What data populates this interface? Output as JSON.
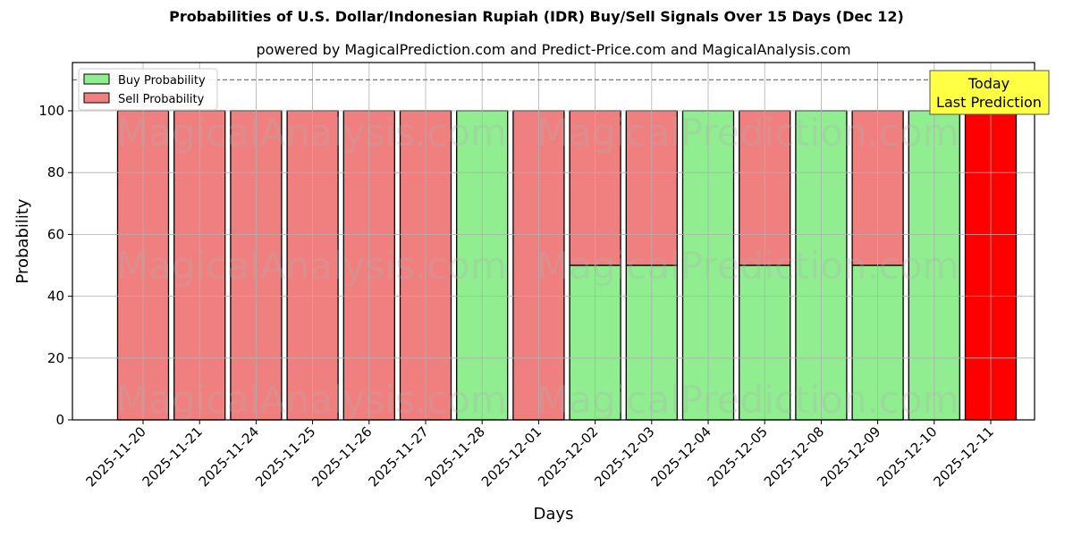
{
  "title": "Probabilities of U.S. Dollar/Indonesian Rupiah (IDR) Buy/Sell Signals Over 15 Days (Dec 12)",
  "subtitle": "powered by MagicalPrediction.com and Predict-Price.com and MagicalAnalysis.com",
  "annotation": {
    "line1": "Today",
    "line2": "Last Prediction"
  },
  "watermarks": [
    "MagicalAnalysis.com",
    "MagicalPrediction.com"
  ],
  "colors": {
    "buy": "#90ee90",
    "sell": "#f08080",
    "today": "#ff0000",
    "annotation_bg": "#ffff44"
  },
  "chart_data": {
    "type": "bar",
    "stacked": true,
    "title": "Probabilities of U.S. Dollar/Indonesian Rupiah (IDR) Buy/Sell Signals Over 15 Days (Dec 12)",
    "subtitle": "powered by MagicalPrediction.com and Predict-Price.com and MagicalAnalysis.com",
    "xlabel": "Days",
    "ylabel": "Probability",
    "ylim": [
      0,
      115
    ],
    "yticks": [
      0,
      20,
      40,
      60,
      80,
      100
    ],
    "reference_line": {
      "y": 110,
      "style": "dashed"
    },
    "grid": true,
    "legend_position": "upper left",
    "categories": [
      "2025-11-20",
      "2025-11-21",
      "2025-11-24",
      "2025-11-25",
      "2025-11-26",
      "2025-11-27",
      "2025-11-28",
      "2025-12-01",
      "2025-12-02",
      "2025-12-03",
      "2025-12-04",
      "2025-12-05",
      "2025-12-08",
      "2025-12-09",
      "2025-12-10",
      "2025-12-11"
    ],
    "series": [
      {
        "name": "Buy Probability",
        "values": [
          0,
          0,
          0,
          0,
          0,
          0,
          100,
          0,
          50,
          50,
          100,
          50,
          100,
          50,
          100,
          0
        ]
      },
      {
        "name": "Sell Probability",
        "values": [
          100,
          100,
          100,
          100,
          100,
          100,
          0,
          100,
          50,
          50,
          0,
          50,
          0,
          50,
          0,
          100
        ]
      }
    ],
    "highlight": {
      "category": "2025-12-11",
      "label": "Today Last Prediction",
      "color": "#ff0000"
    }
  }
}
